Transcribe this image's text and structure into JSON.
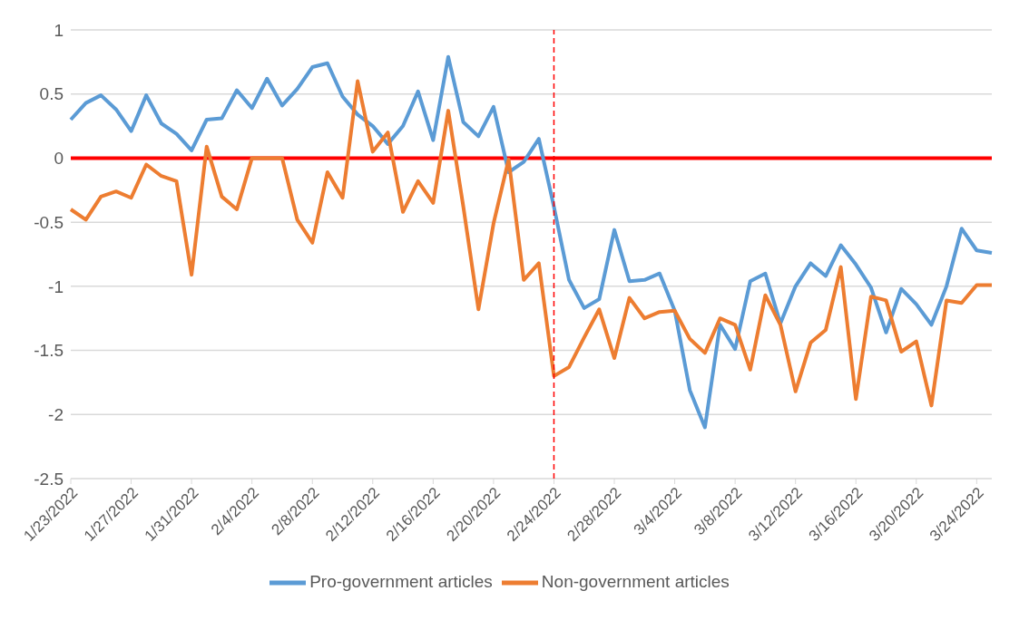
{
  "chart_data": {
    "type": "line",
    "categories": [
      "1/23/2022",
      null,
      null,
      null,
      "1/27/2022",
      null,
      null,
      null,
      "1/31/2022",
      null,
      null,
      null,
      "2/4/2022",
      null,
      null,
      null,
      "2/8/2022",
      null,
      null,
      null,
      "2/12/2022",
      null,
      null,
      null,
      "2/16/2022",
      null,
      null,
      null,
      "2/20/2022",
      null,
      null,
      null,
      "2/24/2022",
      null,
      null,
      null,
      "2/28/2022",
      null,
      null,
      null,
      "3/4/2022",
      null,
      null,
      null,
      "3/8/2022",
      null,
      null,
      null,
      "3/12/2022",
      null,
      null,
      null,
      "3/16/2022",
      null,
      null,
      null,
      "3/20/2022",
      null,
      null,
      null,
      "3/24/2022",
      null
    ],
    "series": [
      {
        "name": "Pro-government articles",
        "color": "#5b9bd5",
        "values": [
          0.3,
          0.43,
          0.49,
          0.38,
          0.21,
          0.49,
          0.27,
          0.19,
          0.06,
          0.3,
          0.31,
          0.53,
          0.39,
          0.62,
          0.41,
          0.54,
          0.71,
          0.74,
          0.48,
          0.34,
          0.25,
          0.11,
          0.25,
          0.52,
          0.14,
          0.79,
          0.28,
          0.17,
          0.4,
          -0.11,
          -0.03,
          0.15,
          -0.38,
          -0.95,
          -1.17,
          -1.1,
          -0.56,
          -0.96,
          -0.95,
          -0.9,
          -1.19,
          -1.81,
          -2.1,
          -1.3,
          -1.49,
          -0.96,
          -0.9,
          -1.29,
          -1.0,
          -0.82,
          -0.92,
          -0.68,
          -0.83,
          -1.01,
          -1.36,
          -1.02,
          -1.14,
          -1.3,
          -1.0,
          -0.55,
          -0.72,
          -0.74
        ]
      },
      {
        "name": "Non-government articles",
        "color": "#ed7d31",
        "values": [
          -0.4,
          -0.48,
          -0.3,
          -0.26,
          -0.31,
          -0.05,
          -0.14,
          -0.18,
          -0.91,
          0.09,
          -0.3,
          -0.4,
          0.0,
          0.0,
          0.0,
          -0.48,
          -0.66,
          -0.11,
          -0.31,
          0.6,
          0.05,
          0.2,
          -0.42,
          -0.18,
          -0.35,
          0.37,
          -0.38,
          -1.18,
          -0.51,
          -0.01,
          -0.95,
          -0.82,
          -1.7,
          -1.63,
          -1.4,
          -1.18,
          -1.56,
          -1.09,
          -1.25,
          -1.2,
          -1.19,
          -1.41,
          -1.52,
          -1.25,
          -1.3,
          -1.65,
          -1.07,
          -1.3,
          -1.82,
          -1.44,
          -1.34,
          -0.85,
          -1.88,
          -1.08,
          -1.11,
          -1.51,
          -1.43,
          -1.93,
          -1.11,
          -1.13,
          -0.99,
          -0.99
        ]
      }
    ],
    "ylim": [
      -2.5,
      1
    ],
    "yticks": [
      -2.5,
      -2,
      -1.5,
      -1,
      -0.5,
      0,
      0.5,
      1
    ],
    "grid": "y",
    "legend": "bottom",
    "marker": "none",
    "line_style": "solid",
    "ref_lines": [
      {
        "axis": "y",
        "value": 0,
        "color": "#ff0000",
        "line_style": "solid"
      },
      {
        "axis": "x",
        "value": "2/24/2022",
        "color": "#ff0000",
        "line_style": "dashed"
      }
    ]
  }
}
